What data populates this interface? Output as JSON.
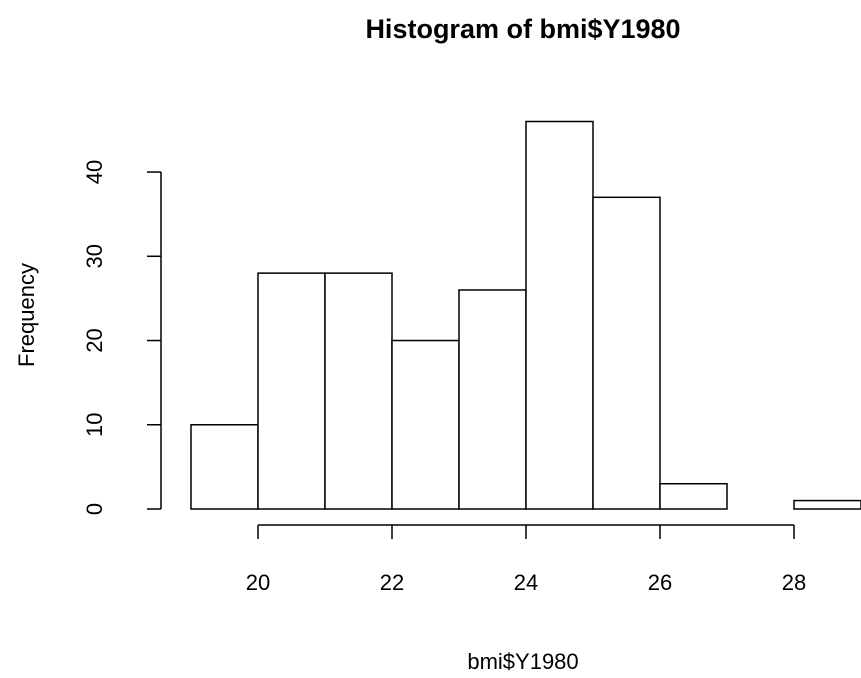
{
  "chart_data": {
    "type": "histogram",
    "title": "Histogram of bmi$Y1980",
    "x_label": "bmi$Y1980",
    "y_label": "Frequency",
    "bins": [
      19,
      20,
      21,
      22,
      23,
      24,
      25,
      26,
      27,
      28,
      29
    ],
    "counts": [
      10,
      28,
      28,
      20,
      26,
      46,
      37,
      3,
      0,
      1
    ],
    "color": "#ffffff",
    "edge_color": "#000000",
    "xlim": [
      19,
      29
    ],
    "ylim": [
      0,
      46
    ],
    "xticks": [
      20,
      22,
      24,
      26,
      28
    ],
    "yticks": [
      0,
      10,
      20,
      30,
      40
    ]
  }
}
